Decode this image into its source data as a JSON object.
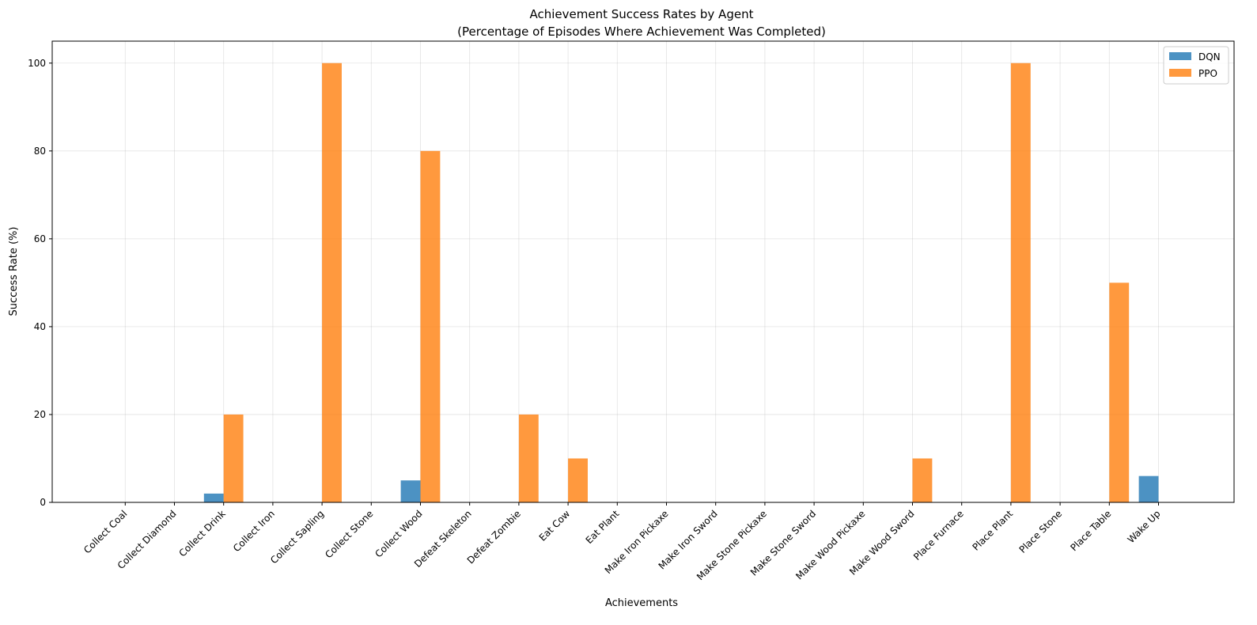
{
  "chart_data": {
    "type": "bar",
    "title": "Achievement Success Rates by Agent",
    "subtitle": "(Percentage of Episodes Where Achievement Was Completed)",
    "xlabel": "Achievements",
    "ylabel": "Success Rate (%)",
    "ylim": [
      0,
      105
    ],
    "yticks": [
      0,
      20,
      40,
      60,
      80,
      100
    ],
    "grid": true,
    "legend_position": "top-right",
    "categories": [
      "Collect Coal",
      "Collect Diamond",
      "Collect Drink",
      "Collect Iron",
      "Collect Sapling",
      "Collect Stone",
      "Collect Wood",
      "Defeat Skeleton",
      "Defeat Zombie",
      "Eat Cow",
      "Eat Plant",
      "Make Iron Pickaxe",
      "Make Iron Sword",
      "Make Stone Pickaxe",
      "Make Stone Sword",
      "Make Wood Pickaxe",
      "Make Wood Sword",
      "Place Furnace",
      "Place Plant",
      "Place Stone",
      "Place Table",
      "Wake Up"
    ],
    "series": [
      {
        "name": "DQN",
        "color": "#1f77b4",
        "values": [
          0,
          0,
          2,
          0,
          0,
          0,
          5,
          0,
          0,
          0,
          0,
          0,
          0,
          0,
          0,
          0,
          0,
          0,
          0,
          0,
          0,
          6
        ]
      },
      {
        "name": "PPO",
        "color": "#ff7f0e",
        "values": [
          0,
          0,
          20,
          0,
          100,
          0,
          80,
          0,
          20,
          10,
          0,
          0,
          0,
          0,
          0,
          0,
          10,
          0,
          100,
          0,
          50,
          0
        ]
      }
    ]
  }
}
